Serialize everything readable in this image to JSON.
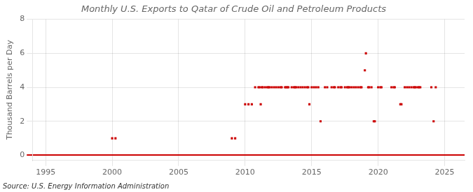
{
  "chart_data": {
    "type": "scatter",
    "title": "Monthly U.S. Exports to Qatar of Crude Oil and Petroleum Products",
    "ylabel": "Thousand Barrels per Day",
    "source": "Source: U.S. Energy Information Administration",
    "x": [
      2000.0,
      2000.25,
      2009.0,
      2009.25,
      2010.0,
      2010.25,
      2010.75,
      2011.0,
      2011.08,
      2011.25,
      2011.33,
      2011.5,
      2011.67,
      2011.75,
      2011.83,
      2012.0,
      2012.17,
      2012.33,
      2012.5,
      2012.67,
      2012.75,
      2013.0,
      2013.08,
      2013.17,
      2013.25,
      2013.5,
      2013.67,
      2013.75,
      2013.83,
      2014.0,
      2014.17,
      2014.33,
      2014.5,
      2014.67,
      2014.75,
      2015.0,
      2015.17,
      2015.33,
      2015.5,
      2010.5,
      2011.17,
      2014.83,
      2015.67,
      2016.0,
      2016.17,
      2016.5,
      2016.67,
      2016.75,
      2017.0,
      2017.17,
      2017.25,
      2017.5,
      2017.67,
      2017.75,
      2017.83,
      2018.0,
      2018.17,
      2018.33,
      2018.5,
      2018.67,
      2018.75,
      2019.0,
      2019.08,
      2019.25,
      2019.33,
      2019.5,
      2019.67,
      2019.75,
      2020.0,
      2020.17,
      2020.25,
      2021.0,
      2021.17,
      2021.25,
      2021.67,
      2021.75,
      2022.0,
      2022.17,
      2022.33,
      2022.5,
      2022.67,
      2022.75,
      2022.83,
      2023.0,
      2023.08,
      2023.17,
      2024.0,
      2024.17,
      2024.33
    ],
    "values": [
      1,
      1,
      1,
      1,
      3,
      3,
      4,
      4,
      4,
      4,
      4,
      4,
      4,
      4,
      4,
      4,
      4,
      4,
      4,
      4,
      4,
      4,
      4,
      4,
      4,
      4,
      4,
      4,
      4,
      4,
      4,
      4,
      4,
      4,
      4,
      4,
      4,
      4,
      4,
      3,
      3,
      3,
      2,
      4,
      4,
      4,
      4,
      4,
      4,
      4,
      4,
      4,
      4,
      4,
      4,
      4,
      4,
      4,
      4,
      4,
      4,
      5,
      6,
      4,
      4,
      4,
      2,
      2,
      4,
      4,
      4,
      4,
      4,
      4,
      3,
      3,
      4,
      4,
      4,
      4,
      4,
      4,
      4,
      4,
      4,
      4,
      4,
      2,
      4
    ],
    "color": "#cc0000",
    "marker": "square",
    "xlim": [
      1994,
      2026.5
    ],
    "ylim": [
      -0.3,
      8
    ],
    "xticks": [
      1995,
      2000,
      2005,
      2010,
      2015,
      2020,
      2025
    ],
    "yticks": [
      0,
      2,
      4,
      6,
      8
    ],
    "grid": true
  }
}
